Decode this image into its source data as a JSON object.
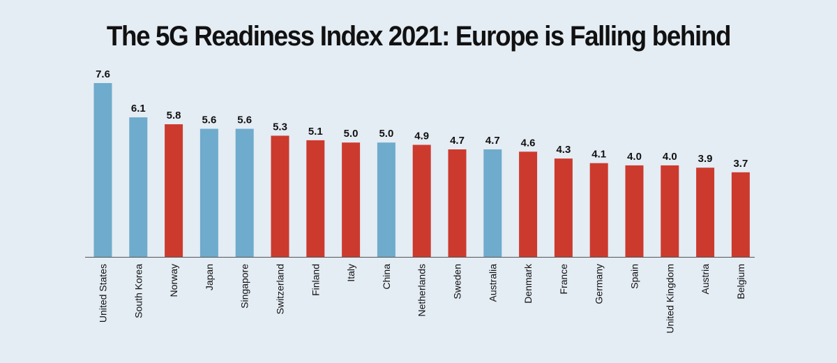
{
  "colors": {
    "background": "#e4ecf4",
    "non_europe": "#6fabcc",
    "europe": "#cc3a2e",
    "axis": "#555555",
    "text": "#111111"
  },
  "chart_data": {
    "type": "bar",
    "title": "The 5G Readiness Index 2021: Europe is Falling behind",
    "xlabel": "",
    "ylabel": "",
    "ylim": [
      0,
      7.6
    ],
    "grid": false,
    "legend": "none",
    "categories": [
      "United States",
      "South Korea",
      "Norway",
      "Japan",
      "Singapore",
      "Switzerland",
      "Finland",
      "Italy",
      "China",
      "Netherlands",
      "Sweden",
      "Australia",
      "Denmark",
      "France",
      "Germany",
      "Spain",
      "United Kingdom",
      "Austria",
      "Belgium"
    ],
    "values": [
      7.6,
      6.1,
      5.8,
      5.6,
      5.6,
      5.3,
      5.1,
      5.0,
      5.0,
      4.9,
      4.7,
      4.7,
      4.6,
      4.3,
      4.1,
      4.0,
      4.0,
      3.9,
      3.7
    ],
    "value_labels": [
      "7.6",
      "6.1",
      "5.8",
      "5.6",
      "5.6",
      "5.3",
      "5.1",
      "5.0",
      "5.0",
      "4.9",
      "4.7",
      "4.7",
      "4.6",
      "4.3",
      "4.1",
      "4.0",
      "4.0",
      "3.9",
      "3.7"
    ],
    "bar_colors": [
      "#6fabcc",
      "#6fabcc",
      "#cc3a2e",
      "#6fabcc",
      "#6fabcc",
      "#cc3a2e",
      "#cc3a2e",
      "#cc3a2e",
      "#6fabcc",
      "#cc3a2e",
      "#cc3a2e",
      "#6fabcc",
      "#cc3a2e",
      "#cc3a2e",
      "#cc3a2e",
      "#cc3a2e",
      "#cc3a2e",
      "#cc3a2e",
      "#cc3a2e"
    ]
  }
}
